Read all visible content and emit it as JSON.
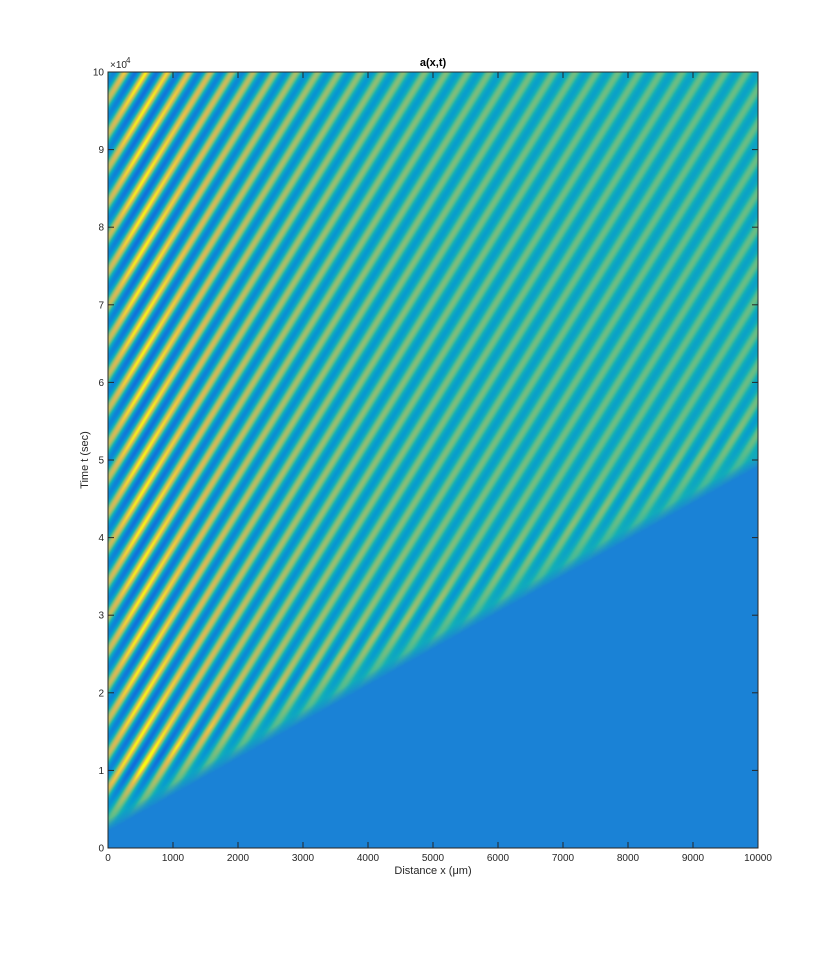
{
  "chart_data": {
    "type": "heatmap",
    "title": "a(x,t)",
    "xlabel": "Distance x (μm)",
    "ylabel": "Time t (sec)",
    "y_multiplier_label": "×10",
    "y_multiplier_exponent": "4",
    "xlim": [
      0,
      10000
    ],
    "ylim": [
      0,
      10
    ],
    "y_scale_factor": 10000,
    "xticks": [
      0,
      1000,
      2000,
      3000,
      4000,
      5000,
      6000,
      7000,
      8000,
      9000,
      10000
    ],
    "xtick_labels": [
      "0",
      "1000",
      "2000",
      "3000",
      "4000",
      "5000",
      "6000",
      "7000",
      "8000",
      "9000",
      "10000"
    ],
    "yticks": [
      0,
      1,
      2,
      3,
      4,
      5,
      6,
      7,
      8,
      9,
      10
    ],
    "ytick_labels": [
      "0",
      "1",
      "2",
      "3",
      "4",
      "5",
      "6",
      "7",
      "8",
      "9",
      "10"
    ],
    "colormap": "parula",
    "background_color": "#1a82d6",
    "colors": {
      "low": "#2a3fc8",
      "mid": "#2ab3b8",
      "high": "#f5c732"
    },
    "front": {
      "description_x": [
        300,
        10000
      ],
      "description_t_x1e4": [
        0.3,
        5.0
      ]
    }
  }
}
